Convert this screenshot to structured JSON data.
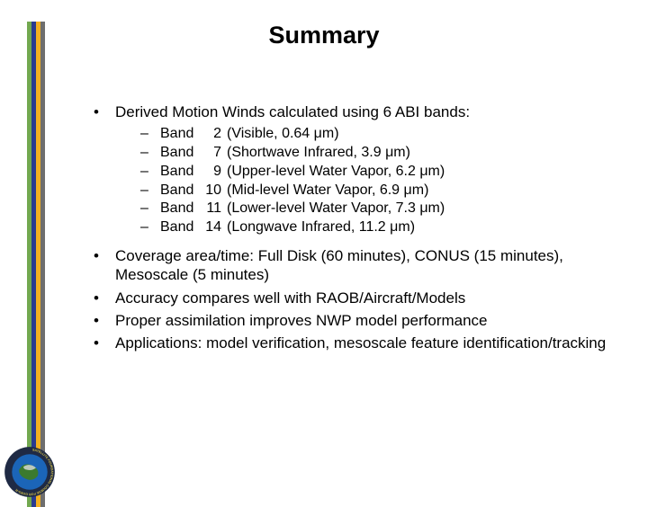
{
  "title": "Summary",
  "stripes": [
    "#72a84f",
    "#2a3b8f",
    "#f4b020",
    "#6e6e6e"
  ],
  "top_bullet": "Derived Motion Winds calculated using 6 ABI bands:",
  "bands": [
    {
      "num": "2",
      "desc": "(Visible, 0.64 μm)"
    },
    {
      "num": "7",
      "desc": "(Shortwave Infrared, 3.9 μm)"
    },
    {
      "num": "9",
      "desc": "(Upper-level Water Vapor, 6.2 μm)"
    },
    {
      "num": "10",
      "desc": "(Mid-level Water Vapor, 6.9 μm)"
    },
    {
      "num": "11",
      "desc": "(Lower-level Water Vapor, 7.3 μm)"
    },
    {
      "num": "14",
      "desc": "(Longwave Infrared, 11.2 μm)"
    }
  ],
  "band_word": "Band",
  "bullets_rest": [
    "Coverage area/time: Full Disk (60 minutes), CONUS (15 minutes), Mesoscale (5 minutes)",
    "Accuracy compares well with RAOB/Aircraft/Models",
    "Proper assimilation improves NWP model performance",
    "Applications: model verification, mesoscale feature identification/tracking"
  ],
  "logo": {
    "outer_ring": "#1f2a44",
    "inner": "#1b65b8",
    "land": "#3b7a2e",
    "cloud": "#dddddd",
    "text": "SATELLITE FOUNDATIONAL COURSE FOR GOES-R",
    "text_color": "#d6c24a"
  }
}
